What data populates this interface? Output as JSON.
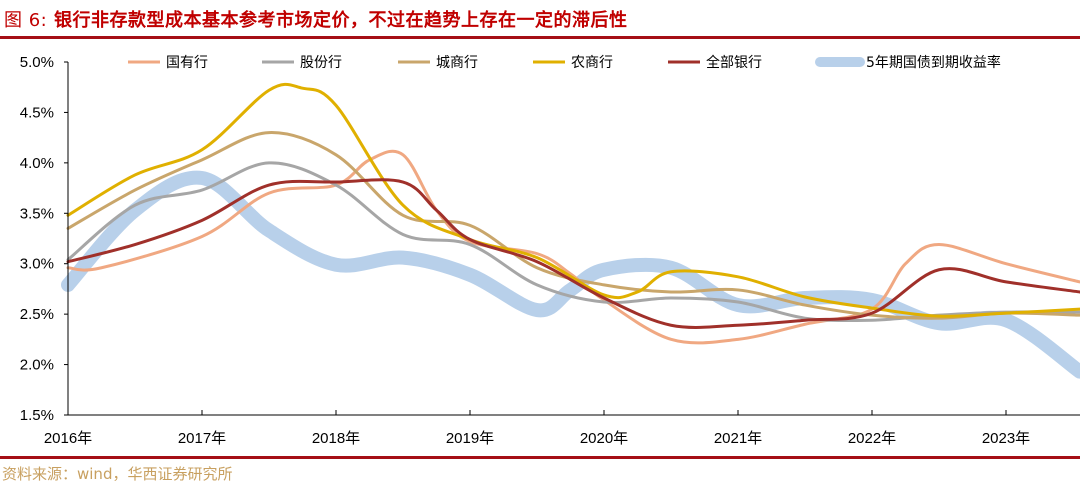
{
  "header": {
    "figure_label": "图 6:",
    "title": "银行非存款型成本基本参考市场定价，不过在趋势上存在一定的滞后性"
  },
  "footer": {
    "source": "资料来源：wind，华西证券研究所"
  },
  "chart_data": {
    "type": "line",
    "title": "",
    "xlabel": "",
    "ylabel": "",
    "xlim": [
      2016,
      2023.55
    ],
    "ylim": [
      1.5,
      5.0
    ],
    "x_ticks": [
      "2016年",
      "2017年",
      "2018年",
      "2019年",
      "2020年",
      "2021年",
      "2022年",
      "2023年"
    ],
    "y_ticks": [
      "1.5%",
      "2.0%",
      "2.5%",
      "3.0%",
      "3.5%",
      "4.0%",
      "4.5%",
      "5.0%"
    ],
    "legend_position": "top",
    "grid": false,
    "series": [
      {
        "name": "国有行",
        "color": "#f0a882",
        "width": 3,
        "x": [
          2016,
          2016.25,
          2017,
          2017.5,
          2018,
          2018.25,
          2018.5,
          2018.75,
          2019,
          2019.5,
          2019.75,
          2020,
          2020.5,
          2021,
          2021.5,
          2022,
          2022.25,
          2022.5,
          2023,
          2023.55
        ],
        "y": [
          2.96,
          2.96,
          3.27,
          3.7,
          3.78,
          4.03,
          4.08,
          3.53,
          3.22,
          3.1,
          2.9,
          2.64,
          2.25,
          2.25,
          2.4,
          2.55,
          3.0,
          3.19,
          3.0,
          2.82
        ]
      },
      {
        "name": "股份行",
        "color": "#a6a6a6",
        "width": 3,
        "x": [
          2016,
          2016.5,
          2017,
          2017.5,
          2018,
          2018.5,
          2019,
          2019.5,
          2020,
          2020.5,
          2021,
          2021.5,
          2022,
          2022.5,
          2023,
          2023.55
        ],
        "y": [
          3.04,
          3.58,
          3.73,
          4.0,
          3.78,
          3.29,
          3.19,
          2.79,
          2.62,
          2.66,
          2.62,
          2.46,
          2.44,
          2.49,
          2.52,
          2.52
        ]
      },
      {
        "name": "城商行",
        "color": "#c9a66b",
        "width": 3,
        "x": [
          2016,
          2016.5,
          2017,
          2017.5,
          2018,
          2018.5,
          2019,
          2019.5,
          2020,
          2020.5,
          2021,
          2021.5,
          2022,
          2022.5,
          2023,
          2023.55
        ],
        "y": [
          3.35,
          3.73,
          4.03,
          4.3,
          4.08,
          3.48,
          3.38,
          2.96,
          2.79,
          2.72,
          2.74,
          2.59,
          2.49,
          2.46,
          2.51,
          2.49
        ]
      },
      {
        "name": "农商行",
        "color": "#e0b000",
        "width": 3,
        "x": [
          2016,
          2016.5,
          2017,
          2017.5,
          2017.75,
          2018,
          2018.5,
          2019,
          2019.5,
          2020,
          2020.25,
          2020.5,
          2021,
          2021.5,
          2022,
          2022.5,
          2023,
          2023.55
        ],
        "y": [
          3.48,
          3.88,
          4.13,
          4.72,
          4.74,
          4.57,
          3.58,
          3.24,
          3.06,
          2.69,
          2.72,
          2.92,
          2.87,
          2.67,
          2.56,
          2.48,
          2.51,
          2.55
        ]
      },
      {
        "name": "全部银行",
        "color": "#a0302a",
        "width": 3,
        "x": [
          2016,
          2016.5,
          2017,
          2017.5,
          2018,
          2018.5,
          2018.75,
          2019,
          2019.5,
          2020,
          2020.5,
          2021,
          2021.5,
          2022,
          2022.5,
          2023,
          2023.55
        ],
        "y": [
          3.02,
          3.19,
          3.43,
          3.78,
          3.81,
          3.81,
          3.53,
          3.24,
          3.02,
          2.66,
          2.39,
          2.39,
          2.44,
          2.51,
          2.94,
          2.82,
          2.72
        ]
      },
      {
        "name": "5年期国债到期收益率",
        "color": "#b8d0ea",
        "width": 14,
        "x": [
          2016,
          2016.5,
          2017,
          2017.5,
          2018,
          2018.5,
          2019,
          2019.5,
          2019.75,
          2020,
          2020.5,
          2021,
          2021.5,
          2022,
          2022.5,
          2023,
          2023.55
        ],
        "y": [
          2.79,
          3.53,
          3.85,
          3.33,
          2.99,
          3.06,
          2.89,
          2.54,
          2.74,
          2.94,
          2.96,
          2.59,
          2.66,
          2.64,
          2.41,
          2.44,
          1.93
        ]
      }
    ]
  }
}
